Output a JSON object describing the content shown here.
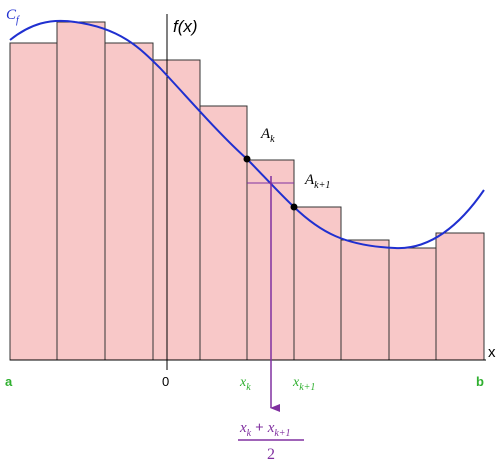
{
  "labels": {
    "curve": {
      "main": "C",
      "sub": "f"
    },
    "y_axis": "f(x)",
    "x_axis": "x",
    "point_k": {
      "main": "A",
      "sub": "k"
    },
    "point_k1": {
      "main": "A",
      "sub": "k+1"
    },
    "a": "a",
    "origin": "0",
    "b": "b",
    "x_k": {
      "main": "x",
      "sub": "k"
    },
    "x_k1": {
      "main": "x",
      "sub": "k+1"
    },
    "midpoint": {
      "numerator_left": {
        "main": "x",
        "sub": "k"
      },
      "plus": "+",
      "numerator_right": {
        "main": "x",
        "sub": "k+1"
      },
      "denominator": "2"
    }
  }
}
